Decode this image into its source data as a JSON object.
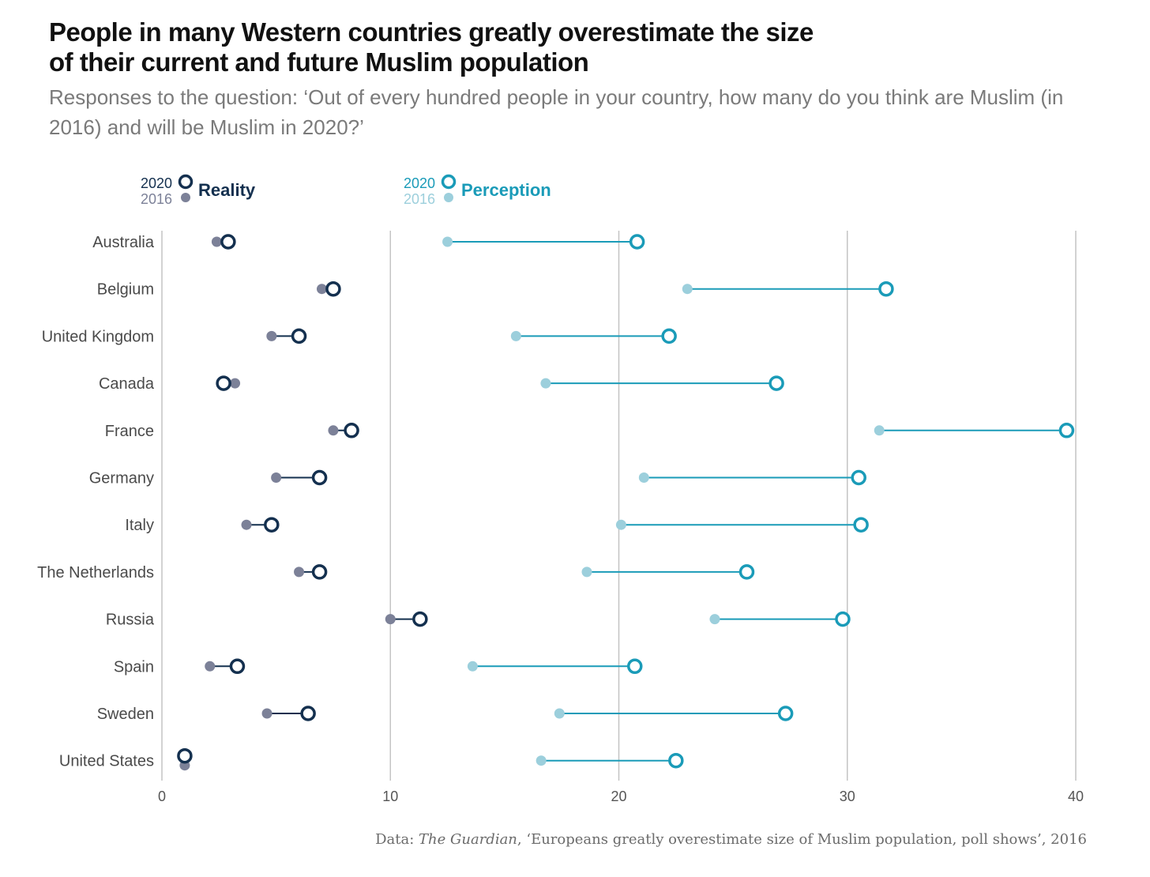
{
  "title": "People in many Western countries greatly overestimate the size of their current and future Muslim population",
  "subtitle": "Responses to the question: ‘Out of every hundred people in your country, how many do you think are Muslim (in 2016) and will be Muslim in 2020?’",
  "source": {
    "prefix": "Data: ",
    "publication": "The Guardian",
    "rest": ", ‘Europeans greatly overestimate size of Muslim population, poll shows’, 2016"
  },
  "colors": {
    "reality_2020": "#14304f",
    "reality_2016": "#7c8198",
    "perception_2020": "#1a9bb8",
    "perception_2016": "#9ccfdc",
    "grid": "#c4c4c4"
  },
  "legend": {
    "reality": {
      "name": "Reality",
      "year_2020": "2020",
      "year_2016": "2016"
    },
    "perception": {
      "name": "Perception",
      "year_2020": "2020",
      "year_2016": "2016"
    }
  },
  "chart_data": {
    "type": "dumbbell",
    "title": "People in many Western countries greatly overestimate the size of their current and future Muslim population",
    "xlim": [
      0,
      40
    ],
    "xticks": [
      0,
      10,
      20,
      30,
      40
    ],
    "grid": "vertical",
    "legend_position": "top-left",
    "categories": [
      "Australia",
      "Belgium",
      "United Kingdom",
      "Canada",
      "France",
      "Germany",
      "Italy",
      "The Netherlands",
      "Russia",
      "Spain",
      "Sweden",
      "United States"
    ],
    "series": [
      {
        "name": "Reality 2016",
        "values": [
          2.4,
          7.0,
          4.8,
          3.2,
          7.5,
          5.0,
          3.7,
          6.0,
          10.0,
          2.1,
          4.6,
          1.0
        ]
      },
      {
        "name": "Reality 2020",
        "values": [
          2.9,
          7.5,
          6.0,
          2.7,
          8.3,
          6.9,
          4.8,
          6.9,
          11.3,
          3.3,
          6.4,
          1.0
        ]
      },
      {
        "name": "Perception 2016",
        "values": [
          12.5,
          23.0,
          15.5,
          16.8,
          31.4,
          21.1,
          20.1,
          18.6,
          24.2,
          13.6,
          17.4,
          16.6
        ]
      },
      {
        "name": "Perception 2020",
        "values": [
          20.8,
          31.7,
          22.2,
          26.9,
          39.6,
          30.5,
          30.6,
          25.6,
          29.8,
          20.7,
          27.3,
          22.5
        ]
      }
    ]
  }
}
